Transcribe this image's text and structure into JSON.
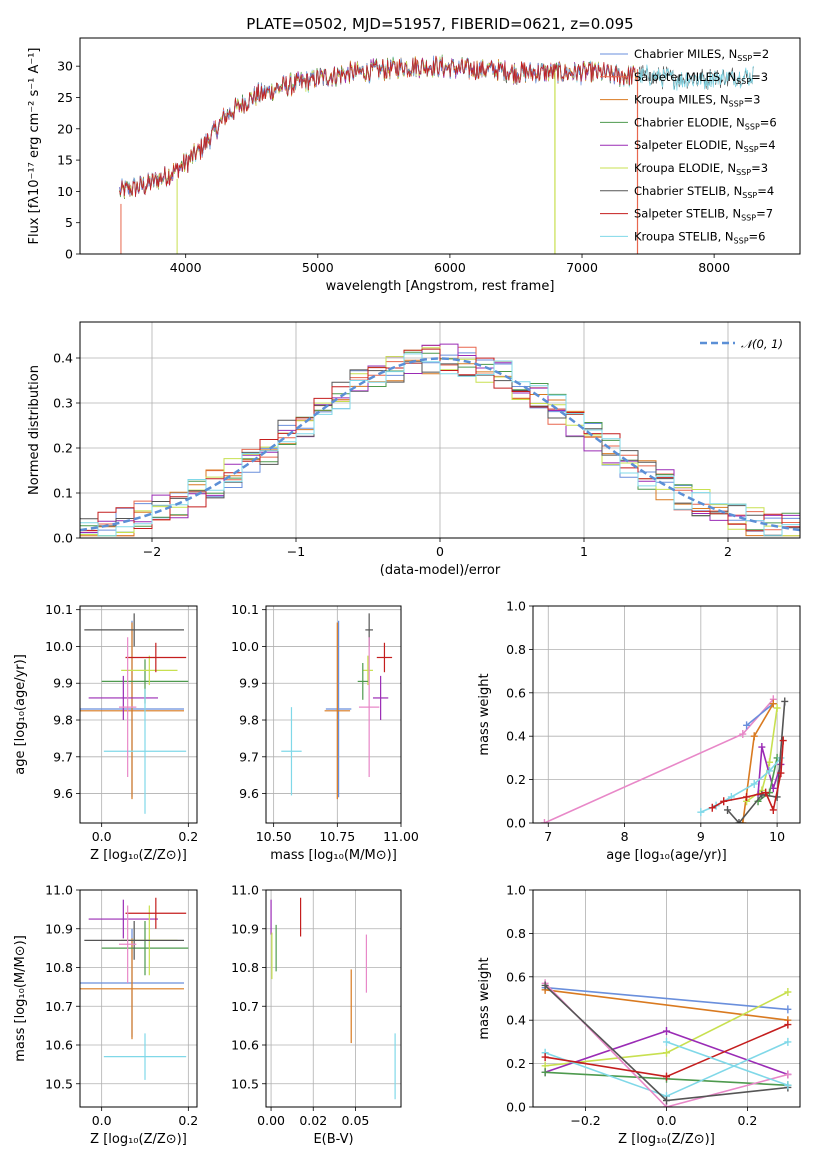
{
  "figure": {
    "title": "PLATE=0502, MJD=51957, FIBERID=0621, z=0.095"
  },
  "colors": {
    "Chabrier MILES": "#6a8fdc",
    "Salpeter MILES": "#e8674e",
    "Kroupa MILES": "#d97a20",
    "Chabrier ELODIE": "#4e9a4e",
    "Salpeter ELODIE": "#9a2bb5",
    "Kroupa ELODIE": "#c8e050",
    "Chabrier STELIB": "#555555",
    "Salpeter STELIB": "#c41e1e",
    "Kroupa STELIB": "#80d8e8",
    "pink": "#e888c8",
    "gaussian": "#5b8fd6"
  },
  "chart_data": [
    {
      "id": "spectrum",
      "type": "line",
      "xlabel": "wavelength [Angstrom, rest frame]",
      "ylabel": "Flux [fλ10⁻¹⁷ erg cm⁻² s⁻¹ A⁻¹]",
      "xlim": [
        3200,
        8650
      ],
      "ylim": [
        0,
        34.5
      ],
      "xticks": [
        4000,
        5000,
        6000,
        7000,
        8000
      ],
      "yticks": [
        0,
        5,
        10,
        15,
        20,
        25,
        30
      ],
      "grid": false,
      "legend_position": "upper-right",
      "legend": [
        {
          "name": "Chabrier MILES",
          "nssp": "2"
        },
        {
          "name": "Salpeter MILES",
          "nssp": "3"
        },
        {
          "name": "Kroupa MILES",
          "nssp": "3"
        },
        {
          "name": "Chabrier ELODIE",
          "nssp": "6"
        },
        {
          "name": "Salpeter ELODIE",
          "nssp": "4"
        },
        {
          "name": "Kroupa ELODIE",
          "nssp": "3"
        },
        {
          "name": "Chabrier STELIB",
          "nssp": "4"
        },
        {
          "name": "Salpeter STELIB",
          "nssp": "7"
        },
        {
          "name": "Kroupa STELIB",
          "nssp": "6"
        }
      ],
      "continuum": {
        "x": [
          3500,
          3700,
          3900,
          4000,
          4100,
          4200,
          4300,
          4400,
          4500,
          4700,
          4900,
          5100,
          5300,
          5500,
          5700,
          5900,
          6100,
          6300,
          6500,
          6700,
          6900,
          7100,
          7300,
          7500,
          7700,
          7900,
          8100,
          8300
        ],
        "y": [
          10,
          11,
          13,
          14.5,
          16.5,
          19,
          22,
          23.5,
          25,
          26.5,
          27.5,
          28.5,
          29,
          29.5,
          30,
          30,
          29.5,
          29.5,
          29,
          29,
          29,
          29,
          28.5,
          28.5,
          28,
          28,
          28.2,
          28.5
        ]
      },
      "extents": {
        "Chabrier MILES": [
          3500,
          7400
        ],
        "Salpeter MILES": [
          3500,
          7420
        ],
        "Kroupa MILES": [
          3500,
          7420
        ],
        "Chabrier ELODIE": [
          3500,
          7400
        ],
        "Salpeter ELODIE": [
          3500,
          7400
        ],
        "Kroupa ELODIE": [
          3500,
          7400
        ],
        "Chabrier STELIB": [
          3500,
          8300
        ],
        "Salpeter STELIB": [
          3500,
          7400
        ],
        "Kroupa STELIB": [
          3500,
          8300
        ]
      }
    },
    {
      "id": "residuals",
      "type": "histogram",
      "xlabel": "(data-model)/error",
      "ylabel": "Normed distribution",
      "xlim": [
        -2.5,
        2.5
      ],
      "ylim": [
        0,
        0.48
      ],
      "xticks": [
        -2,
        -1,
        0,
        1,
        2
      ],
      "yticks": [
        0.0,
        0.1,
        0.2,
        0.3,
        0.4
      ],
      "grid": true,
      "legend_position": "upper-right",
      "legend": [
        {
          "name": "N(0,1)"
        }
      ],
      "bins": 40
    },
    {
      "id": "age_vs_z",
      "type": "errorbar",
      "xlabel": "Z [log₁₀(Z/Z⊙)]",
      "ylabel": "age  [log₁₀(age/yr)]",
      "xlim": [
        -0.05,
        0.22
      ],
      "ylim": [
        9.52,
        10.11
      ],
      "xticks": [
        0.0,
        0.2
      ],
      "yticks": [
        9.6,
        9.7,
        9.8,
        9.9,
        10.0,
        10.1
      ],
      "grid": true,
      "points": [
        {
          "model": "Chabrier MILES",
          "x": 0.07,
          "y": 9.83,
          "xerr": 0.12,
          "yerr": 0.24
        },
        {
          "model": "Kroupa MILES",
          "x": 0.07,
          "y": 9.825,
          "xerr": 0.12,
          "yerr": 0.24
        },
        {
          "model": "Chabrier ELODIE",
          "x": 0.1,
          "y": 9.905,
          "xerr": 0.1,
          "yerr": 0.06
        },
        {
          "model": "Salpeter ELODIE",
          "x": 0.05,
          "y": 9.86,
          "xerr": 0.08,
          "yerr": 0.06
        },
        {
          "model": "Kroupa ELODIE",
          "x": 0.11,
          "y": 9.935,
          "xerr": 0.065,
          "yerr": 0.04
        },
        {
          "model": "Chabrier STELIB",
          "x": 0.075,
          "y": 10.045,
          "xerr": 0.115,
          "yerr": 0.045
        },
        {
          "model": "Salpeter STELIB",
          "x": 0.125,
          "y": 9.97,
          "xerr": 0.07,
          "yerr": 0.04
        },
        {
          "model": "Kroupa STELIB",
          "x": 0.1,
          "y": 9.715,
          "xerr": 0.095,
          "yerr": 0.17
        },
        {
          "model": "pink",
          "x": 0.06,
          "y": 9.835,
          "xerr": 0.02,
          "yerr": 0.19
        }
      ]
    },
    {
      "id": "age_vs_mass",
      "type": "errorbar",
      "xlabel": "mass [log₁₀(M/M⊙)]",
      "ylabel": "",
      "xlim": [
        10.47,
        11.0
      ],
      "ylim": [
        9.52,
        10.11
      ],
      "xticks": [
        10.5,
        10.75,
        11.0
      ],
      "yticks": [
        9.6,
        9.7,
        9.8,
        9.9,
        10.0,
        10.1
      ],
      "grid": true,
      "points": [
        {
          "model": "Chabrier MILES",
          "x": 10.755,
          "y": 9.83,
          "xerr": 0.05,
          "yerr": 0.24
        },
        {
          "model": "Kroupa MILES",
          "x": 10.75,
          "y": 9.825,
          "xerr": 0.05,
          "yerr": 0.24
        },
        {
          "model": "Kroupa ELODIE",
          "x": 10.87,
          "y": 9.935,
          "xerr": 0.02,
          "yerr": 0.04
        },
        {
          "model": "Salpeter ELODIE",
          "x": 10.92,
          "y": 9.86,
          "xerr": 0.03,
          "yerr": 0.06
        },
        {
          "model": "Chabrier STELIB",
          "x": 10.875,
          "y": 10.045,
          "xerr": 0.015,
          "yerr": 0.045
        },
        {
          "model": "Salpeter STELIB",
          "x": 10.935,
          "y": 9.97,
          "xerr": 0.03,
          "yerr": 0.04
        },
        {
          "model": "Kroupa STELIB",
          "x": 10.57,
          "y": 9.715,
          "xerr": 0.04,
          "yerr": 0.12
        },
        {
          "model": "pink",
          "x": 10.875,
          "y": 9.835,
          "xerr": 0.04,
          "yerr": 0.19
        },
        {
          "model": "Chabrier ELODIE",
          "x": 10.85,
          "y": 9.905,
          "xerr": 0.02,
          "yerr": 0.05
        }
      ]
    },
    {
      "id": "weight_vs_age",
      "type": "line",
      "xlabel": "age  [log₁₀(age/yr)]",
      "ylabel": "mass weight",
      "xlim": [
        6.8,
        10.3
      ],
      "ylim": [
        0,
        1.0
      ],
      "xticks": [
        7,
        8,
        9,
        10
      ],
      "yticks": [
        0.0,
        0.2,
        0.4,
        0.6,
        0.8,
        1.0
      ],
      "grid": true,
      "series": [
        {
          "model": "pink",
          "x": [
            6.95,
            9.55,
            9.95
          ],
          "y": [
            0.0,
            0.41,
            0.57
          ]
        },
        {
          "model": "Chabrier MILES",
          "x": [
            9.6,
            9.95
          ],
          "y": [
            0.45,
            0.55
          ]
        },
        {
          "model": "Kroupa MILES",
          "x": [
            9.55,
            9.7,
            9.95
          ],
          "y": [
            0.0,
            0.4,
            0.55
          ]
        },
        {
          "model": "Kroupa ELODIE",
          "x": [
            9.6,
            9.8,
            9.9,
            10.0
          ],
          "y": [
            0.1,
            0.15,
            0.28,
            0.53
          ]
        },
        {
          "model": "Salpeter ELODIE",
          "x": [
            9.75,
            9.8,
            9.95,
            10.05
          ],
          "y": [
            0.13,
            0.35,
            0.16,
            0.27
          ]
        },
        {
          "model": "Chabrier ELODIE",
          "x": [
            9.75,
            9.9,
            10.0
          ],
          "y": [
            0.1,
            0.14,
            0.3
          ]
        },
        {
          "model": "Kroupa STELIB",
          "x": [
            9.0,
            9.2,
            9.4,
            9.7,
            9.9,
            10.05
          ],
          "y": [
            0.05,
            0.08,
            0.12,
            0.18,
            0.24,
            0.3
          ]
        },
        {
          "model": "Chabrier STELIB",
          "x": [
            9.35,
            9.5,
            9.8,
            10.0,
            10.1
          ],
          "y": [
            0.06,
            0.0,
            0.13,
            0.12,
            0.56
          ]
        },
        {
          "model": "Salpeter STELIB",
          "x": [
            9.15,
            9.3,
            9.6,
            9.85,
            9.95,
            10.05,
            10.08
          ],
          "y": [
            0.07,
            0.1,
            0.12,
            0.14,
            0.06,
            0.23,
            0.38
          ]
        }
      ]
    },
    {
      "id": "mass_vs_z",
      "type": "errorbar",
      "xlabel": "Z [log₁₀(Z/Z⊙)]",
      "ylabel": "mass [log₁₀(M/M⊙)]",
      "xlim": [
        -0.05,
        0.22
      ],
      "ylim": [
        10.44,
        11.0
      ],
      "xticks": [
        0.0,
        0.2
      ],
      "yticks": [
        10.5,
        10.6,
        10.7,
        10.8,
        10.9,
        11.0
      ],
      "grid": true,
      "points": [
        {
          "model": "Chabrier MILES",
          "x": 0.07,
          "y": 10.76,
          "xerr": 0.12,
          "yerr": 0.14
        },
        {
          "model": "Kroupa MILES",
          "x": 0.07,
          "y": 10.745,
          "xerr": 0.12,
          "yerr": 0.13
        },
        {
          "model": "Chabrier ELODIE",
          "x": 0.1,
          "y": 10.85,
          "xerr": 0.1,
          "yerr": 0.07
        },
        {
          "model": "Salpeter ELODIE",
          "x": 0.05,
          "y": 10.925,
          "xerr": 0.08,
          "yerr": 0.05
        },
        {
          "model": "Kroupa ELODIE",
          "x": 0.11,
          "y": 10.87,
          "xerr": 0.065,
          "yerr": 0.09
        },
        {
          "model": "Chabrier STELIB",
          "x": 0.075,
          "y": 10.87,
          "xerr": 0.115,
          "yerr": 0.05
        },
        {
          "model": "Salpeter STELIB",
          "x": 0.125,
          "y": 10.94,
          "xerr": 0.07,
          "yerr": 0.04
        },
        {
          "model": "Kroupa STELIB",
          "x": 0.1,
          "y": 10.57,
          "xerr": 0.095,
          "yerr": 0.06
        },
        {
          "model": "pink",
          "x": 0.06,
          "y": 10.86,
          "xerr": 0.02,
          "yerr": 0.1
        }
      ]
    },
    {
      "id": "mass_vs_ebv",
      "type": "errorbar",
      "xlabel": "E(B-V)",
      "ylabel": "",
      "xlim": [
        -0.003,
        0.077
      ],
      "ylim": [
        10.44,
        11.0
      ],
      "xticks": [
        0.0,
        0.025,
        0.05
      ],
      "xticklabels": [
        "0.00",
        "0.02",
        "0.05"
      ],
      "yticks": [
        10.5,
        10.6,
        10.7,
        10.8,
        10.9,
        11.0
      ],
      "grid": true,
      "points": [
        {
          "model": "Salpeter ELODIE",
          "x": 0.0,
          "y": 10.93,
          "xerr": 0,
          "yerr": 0.045
        },
        {
          "model": "Kroupa ELODIE",
          "x": 0.0005,
          "y": 10.83,
          "xerr": 0,
          "yerr": 0.06
        },
        {
          "model": "Chabrier ELODIE",
          "x": 0.003,
          "y": 10.85,
          "xerr": 0,
          "yerr": 0.06
        },
        {
          "model": "Salpeter STELIB",
          "x": 0.0175,
          "y": 10.93,
          "xerr": 0,
          "yerr": 0.05
        },
        {
          "model": "Kroupa MILES",
          "x": 0.0475,
          "y": 10.7,
          "xerr": 0,
          "yerr": 0.095
        },
        {
          "model": "pink",
          "x": 0.0565,
          "y": 10.81,
          "xerr": 0,
          "yerr": 0.075
        },
        {
          "model": "Kroupa STELIB",
          "x": 0.0735,
          "y": 10.545,
          "xerr": 0,
          "yerr": 0.085
        }
      ]
    },
    {
      "id": "weight_vs_z",
      "type": "line",
      "xlabel": "Z [log₁₀(Z/Z⊙)]",
      "ylabel": "mass weight",
      "xlim": [
        -0.33,
        0.33
      ],
      "ylim": [
        0,
        1.0
      ],
      "xticks": [
        -0.2,
        0.0,
        0.2
      ],
      "yticks": [
        0.0,
        0.2,
        0.4,
        0.6,
        0.8,
        1.0
      ],
      "grid": true,
      "series": [
        {
          "model": "Chabrier MILES",
          "x": [
            -0.3,
            0.3
          ],
          "y": [
            0.55,
            0.45
          ]
        },
        {
          "model": "Kroupa MILES",
          "x": [
            -0.3,
            0.3
          ],
          "y": [
            0.54,
            0.4
          ]
        },
        {
          "model": "Kroupa ELODIE",
          "x": [
            -0.3,
            0.0,
            0.3
          ],
          "y": [
            0.19,
            0.25,
            0.53
          ]
        },
        {
          "model": "Salpeter ELODIE",
          "x": [
            -0.3,
            0.0,
            0.3
          ],
          "y": [
            0.16,
            0.35,
            0.15
          ]
        },
        {
          "model": "Chabrier ELODIE",
          "x": [
            -0.3,
            0.0,
            0.3
          ],
          "y": [
            0.16,
            0.13,
            0.1
          ]
        },
        {
          "model": "Kroupa STELIB",
          "x": [
            -0.3,
            0.0,
            0.3
          ],
          "y": [
            0.25,
            0.05,
            0.3
          ]
        },
        {
          "model": "pink",
          "x": [
            -0.3,
            0.0,
            0.3
          ],
          "y": [
            0.57,
            0.0,
            0.15
          ]
        },
        {
          "model": "Chabrier STELIB",
          "x": [
            -0.3,
            0.0,
            0.3
          ],
          "y": [
            0.56,
            0.03,
            0.09
          ]
        },
        {
          "model": "Salpeter STELIB",
          "x": [
            -0.3,
            0.0,
            0.3
          ],
          "y": [
            0.23,
            0.14,
            0.38
          ]
        },
        {
          "model": "Kroupa STELIB",
          "x": [
            0.0,
            0.3
          ],
          "y": [
            0.3,
            0.1
          ]
        }
      ]
    }
  ]
}
